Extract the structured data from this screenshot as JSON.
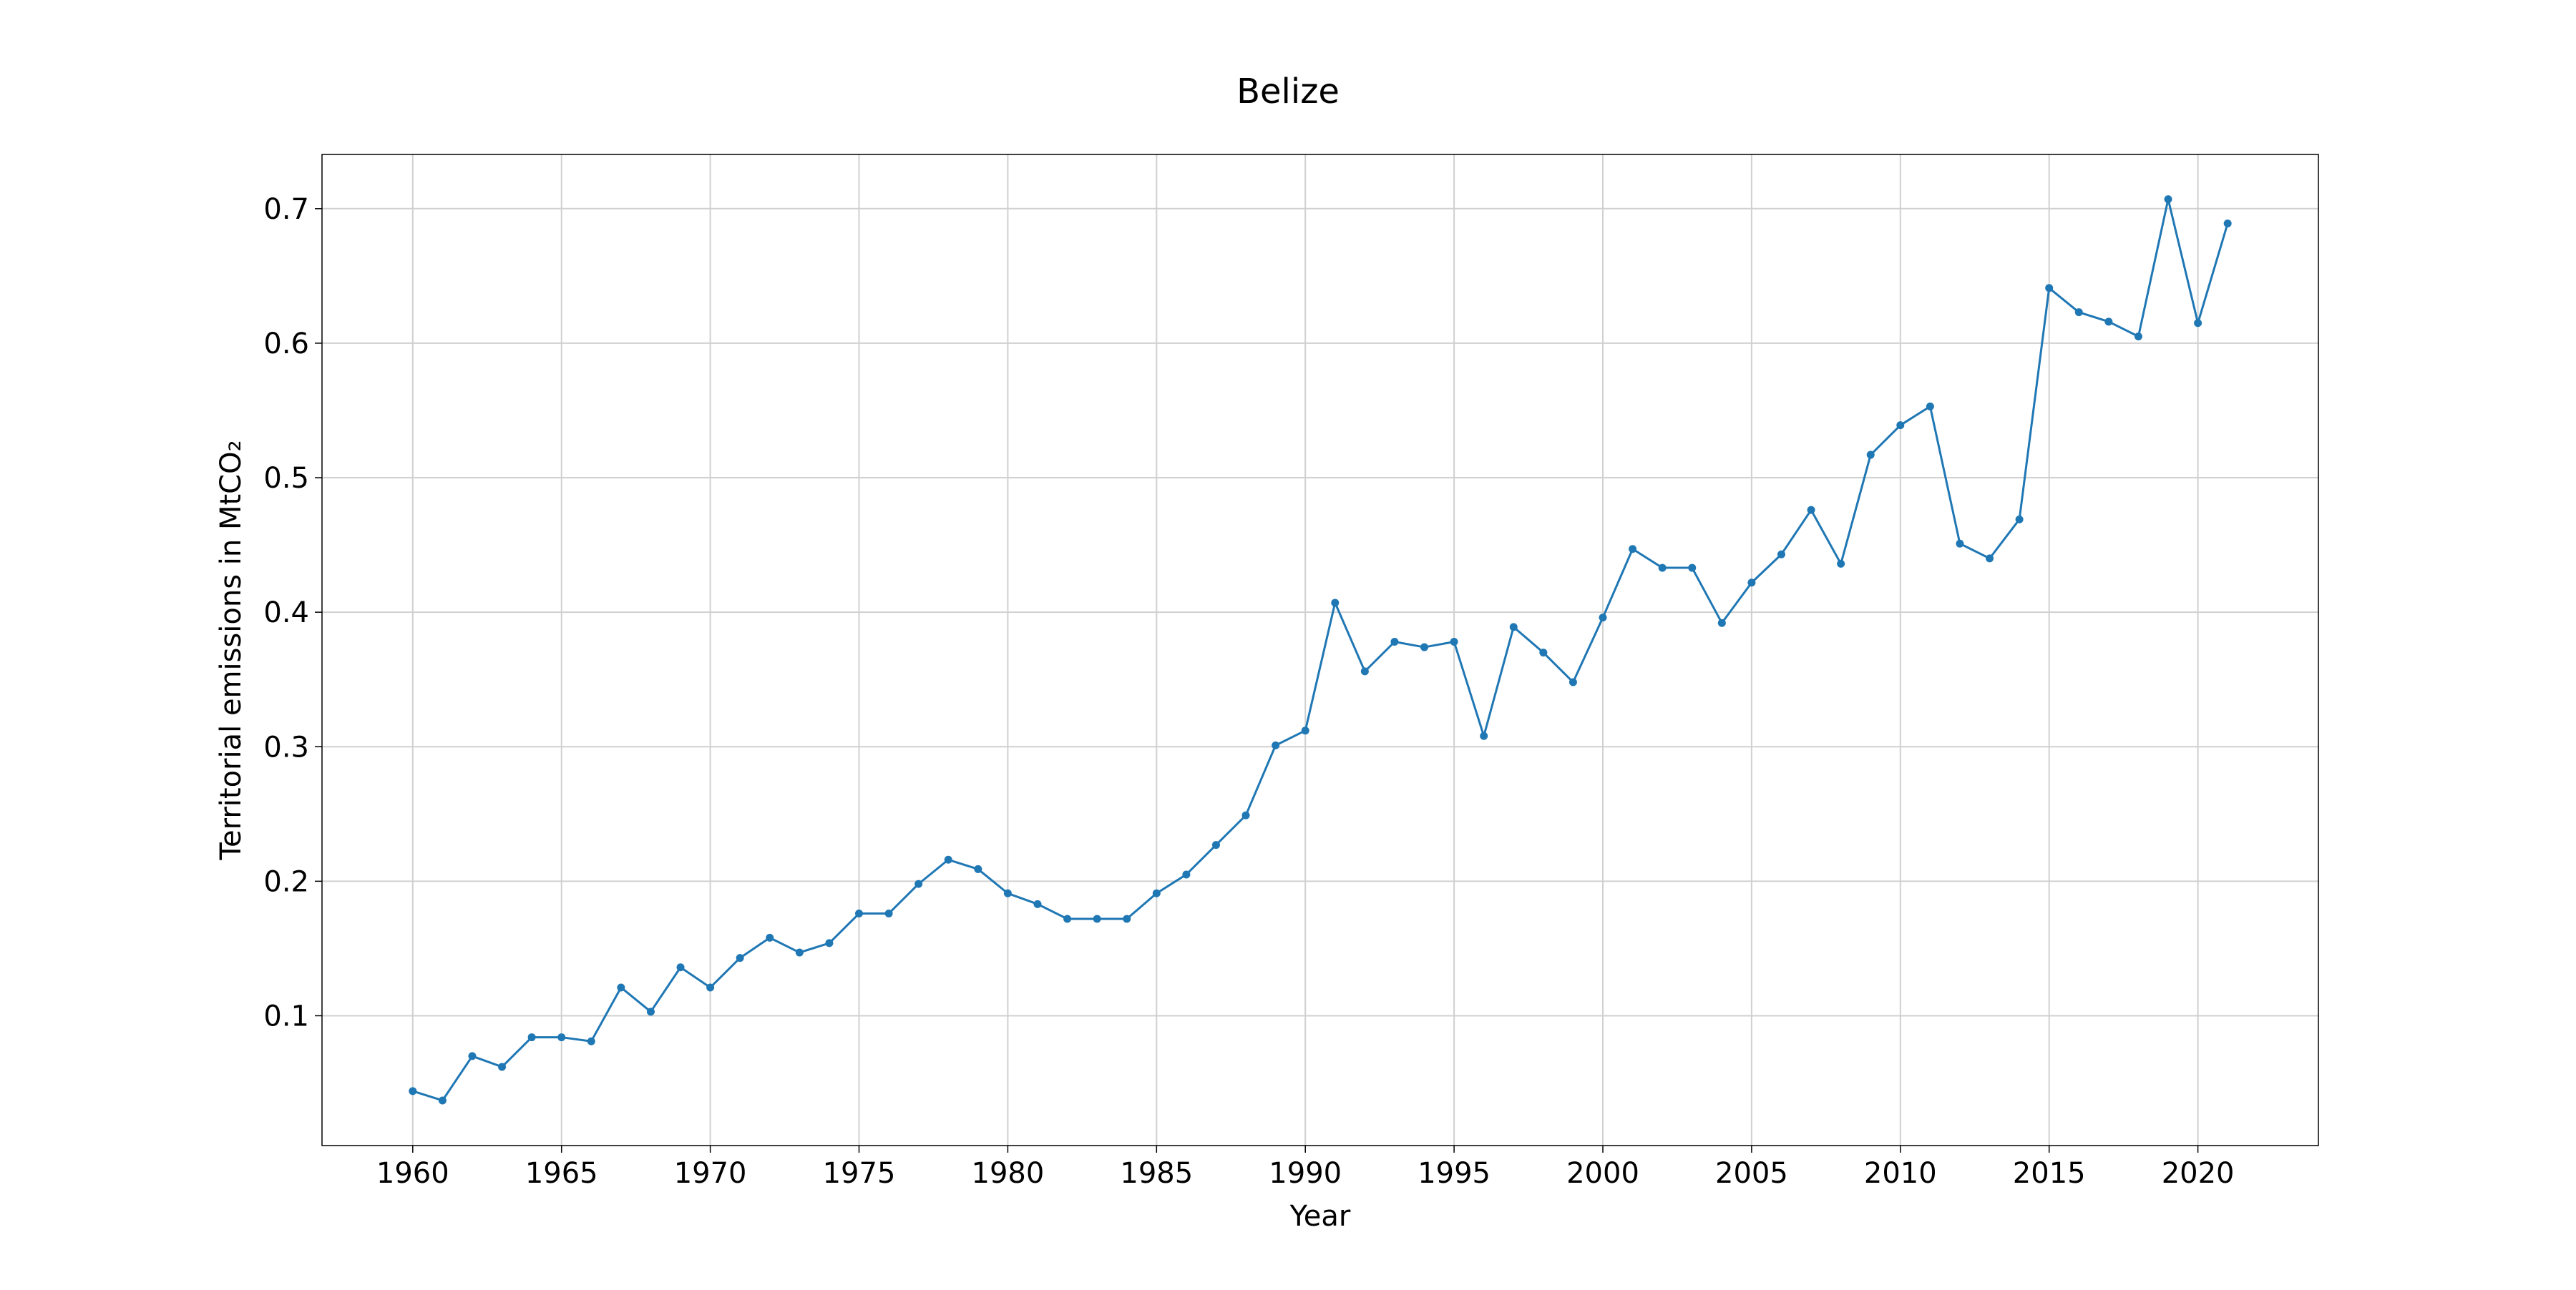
{
  "chart_data": {
    "type": "line",
    "title": "Belize",
    "xlabel": "Year",
    "ylabel": "Territorial emissions in MtCO₂",
    "xlim": [
      1956.95,
      2024.05
    ],
    "ylim": [
      0.0035,
      0.7403
    ],
    "xticks": [
      1960,
      1965,
      1970,
      1975,
      1980,
      1985,
      1990,
      1995,
      2000,
      2005,
      2010,
      2015,
      2020
    ],
    "xtick_labels": [
      "1960",
      "1965",
      "1970",
      "1975",
      "1980",
      "1985",
      "1990",
      "1995",
      "2000",
      "2005",
      "2010",
      "2015",
      "2020"
    ],
    "yticks": [
      0.1,
      0.2,
      0.3,
      0.4,
      0.5,
      0.6,
      0.7
    ],
    "ytick_labels": [
      "0.1",
      "0.2",
      "0.3",
      "0.4",
      "0.5",
      "0.6",
      "0.7"
    ],
    "grid": true,
    "color": "#1f77b4",
    "x": [
      1960,
      1961,
      1962,
      1963,
      1964,
      1965,
      1966,
      1967,
      1968,
      1969,
      1970,
      1971,
      1972,
      1973,
      1974,
      1975,
      1976,
      1977,
      1978,
      1979,
      1980,
      1981,
      1982,
      1983,
      1984,
      1985,
      1986,
      1987,
      1988,
      1989,
      1990,
      1991,
      1992,
      1993,
      1994,
      1995,
      1996,
      1997,
      1998,
      1999,
      2000,
      2001,
      2002,
      2003,
      2004,
      2005,
      2006,
      2007,
      2008,
      2009,
      2010,
      2011,
      2012,
      2013,
      2014,
      2015,
      2016,
      2017,
      2018,
      2019,
      2020,
      2021
    ],
    "y": [
      0.044,
      0.037,
      0.07,
      0.062,
      0.084,
      0.084,
      0.081,
      0.121,
      0.103,
      0.136,
      0.121,
      0.143,
      0.158,
      0.147,
      0.154,
      0.176,
      0.176,
      0.198,
      0.216,
      0.209,
      0.191,
      0.183,
      0.172,
      0.172,
      0.172,
      0.191,
      0.205,
      0.227,
      0.249,
      0.301,
      0.312,
      0.407,
      0.356,
      0.378,
      0.374,
      0.378,
      0.308,
      0.389,
      0.37,
      0.348,
      0.396,
      0.447,
      0.433,
      0.433,
      0.392,
      0.422,
      0.443,
      0.476,
      0.436,
      0.517,
      0.539,
      0.553,
      0.451,
      0.44,
      0.469,
      0.641,
      0.623,
      0.616,
      0.605,
      0.707,
      0.615,
      0.689
    ]
  }
}
